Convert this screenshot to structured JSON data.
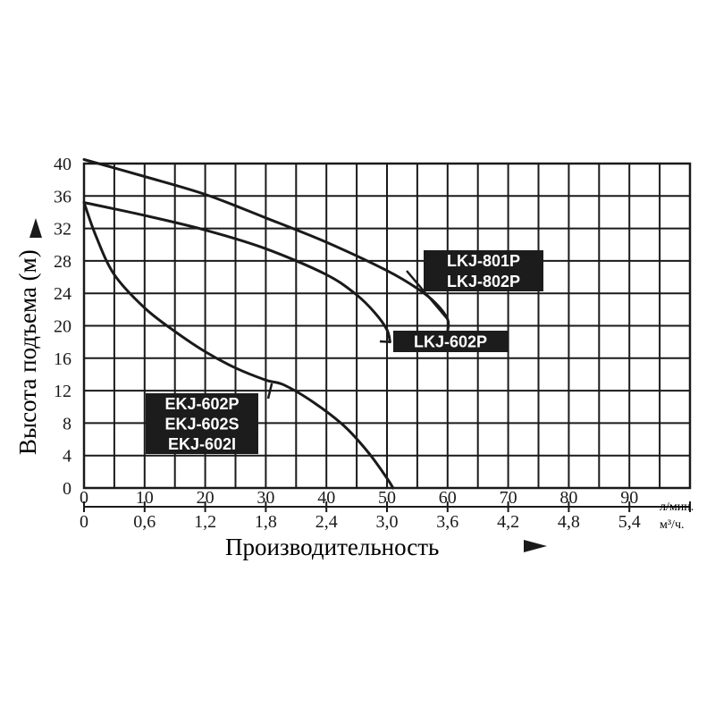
{
  "chart_data": {
    "type": "line",
    "ylabel": "Высота подъема (м)",
    "xlabel": "Производительность",
    "x_unit_primary": "л/мин.",
    "x_unit_secondary": "м³/ч.",
    "xlim": [
      0,
      100
    ],
    "ylim": [
      0,
      40
    ],
    "x_ticks_primary": [
      "0",
      "10",
      "20",
      "30",
      "40",
      "50",
      "60",
      "70",
      "80",
      "90"
    ],
    "x_ticks_secondary": [
      "0",
      "0,6",
      "1,2",
      "1,8",
      "2,4",
      "3,0",
      "3,6",
      "4,2",
      "4,8",
      "5,4"
    ],
    "y_ticks": [
      "0",
      "4",
      "8",
      "12",
      "16",
      "20",
      "24",
      "28",
      "32",
      "36",
      "40"
    ],
    "grid": true,
    "series": [
      {
        "name": "LKJ-801P / LKJ-802P",
        "x": [
          0,
          10,
          20,
          30,
          40,
          50,
          55,
          58,
          60,
          60
        ],
        "y": [
          40.5,
          38.4,
          36.2,
          33.3,
          30.3,
          26.8,
          24.6,
          22.8,
          20.8,
          19.3
        ]
      },
      {
        "name": "LKJ-602P",
        "x": [
          0,
          10,
          20,
          30,
          40,
          45,
          48,
          50,
          50.5
        ],
        "y": [
          35.2,
          33.6,
          31.8,
          29.5,
          26.3,
          23.8,
          21.6,
          19.5,
          18
        ]
      },
      {
        "name": "EKJ-602P / EKJ-602S / EKJ-602I",
        "x": [
          0,
          2,
          5,
          10,
          15,
          20,
          25,
          30,
          33,
          38,
          43,
          47,
          50,
          51
        ],
        "y": [
          35.2,
          31,
          26.3,
          22.2,
          19.3,
          16.8,
          14.8,
          13.3,
          12.7,
          10.5,
          7.6,
          4.3,
          1.2,
          0
        ]
      }
    ],
    "annotations": [
      {
        "lines": [
          "LKJ-801P",
          "LKJ-802P"
        ],
        "x": 60,
        "y": 20.8
      },
      {
        "lines": [
          "LKJ-602P"
        ],
        "x": 50.5,
        "y": 18
      },
      {
        "lines": [
          "EKJ-602P",
          "EKJ-602S",
          "EKJ-602I"
        ],
        "x": 31,
        "y": 12.9
      }
    ]
  }
}
